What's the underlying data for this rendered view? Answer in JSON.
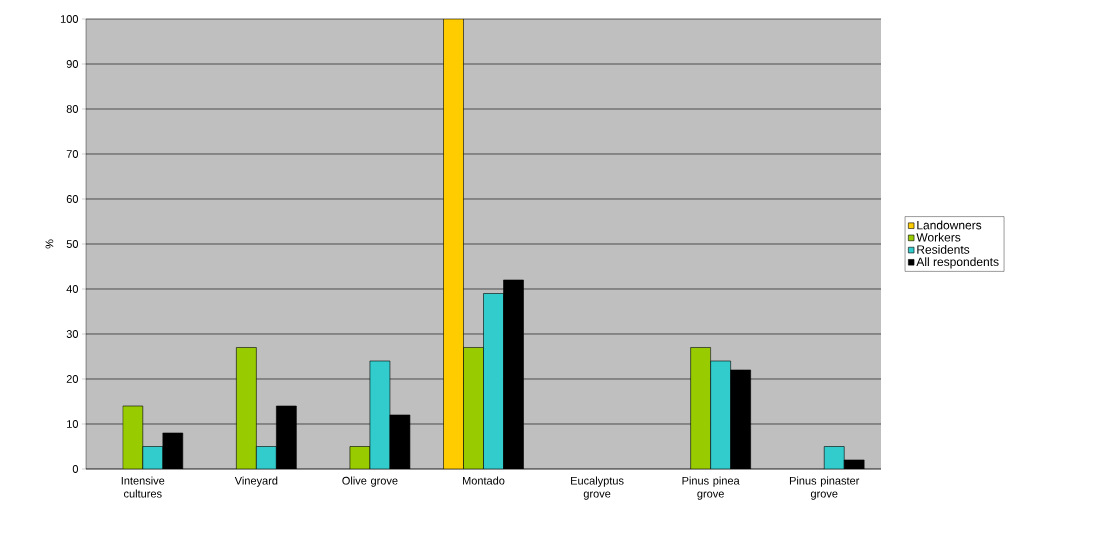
{
  "chart_data": {
    "type": "bar",
    "ylabel": "%",
    "categories": [
      "Intensive cultures",
      "Vineyard",
      "Olive grove",
      "Montado",
      "Eucalyptus grove",
      "Pinus pinea grove",
      "Pinus pinaster grove"
    ],
    "series": [
      {
        "name": "Landowners",
        "color": "#ffcc00",
        "values": [
          null,
          null,
          null,
          100,
          null,
          null,
          null
        ]
      },
      {
        "name": "Workers",
        "color": "#99cc00",
        "values": [
          14,
          27,
          5,
          27,
          null,
          27,
          null
        ]
      },
      {
        "name": "Residents",
        "color": "#33cccc",
        "values": [
          5,
          5,
          24,
          39,
          null,
          24,
          5
        ]
      },
      {
        "name": "All respondents",
        "color": "#000000",
        "values": [
          8,
          14,
          12,
          42,
          null,
          22,
          2
        ]
      }
    ],
    "ylim": [
      0,
      100
    ],
    "yticks": [
      0,
      10,
      20,
      30,
      40,
      50,
      60,
      70,
      80,
      90,
      100
    ],
    "grid": "y",
    "legend": "right"
  }
}
